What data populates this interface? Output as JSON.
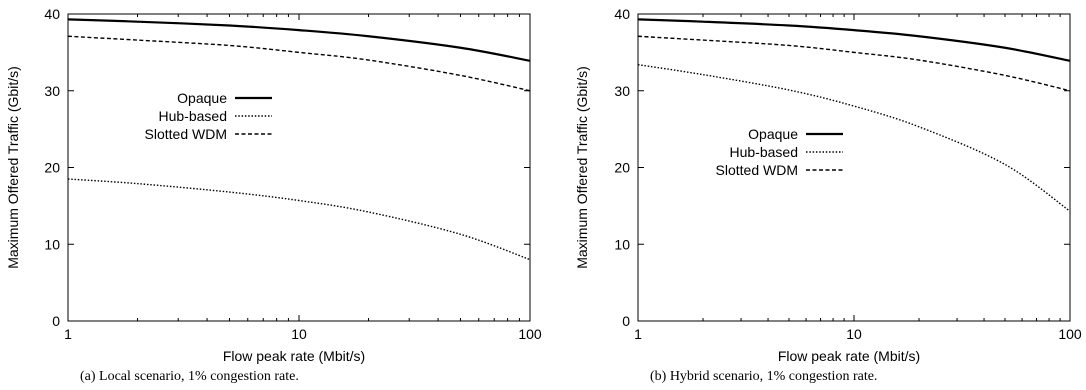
{
  "chart_data": [
    {
      "type": "line",
      "caption": "(a) Local scenario, 1% congestion rate.",
      "xlabel": "Flow peak rate (Mbit/s)",
      "ylabel": "Maximum Offered Traffic (Gbit/s)",
      "xscale": "log",
      "xlim": [
        1,
        100
      ],
      "ylim": [
        0,
        40
      ],
      "xticks": [
        "1",
        "10",
        "100"
      ],
      "yticks": [
        "0",
        "10",
        "20",
        "30",
        "40"
      ],
      "grid": false,
      "legend_position": "upper-left",
      "x": [
        1,
        2,
        5,
        10,
        20,
        50,
        100
      ],
      "series": [
        {
          "name": "Opaque",
          "style": "solid",
          "values": [
            39.3,
            39.0,
            38.5,
            37.9,
            37.1,
            35.6,
            33.9
          ]
        },
        {
          "name": "Hub-based",
          "style": "dotted",
          "values": [
            18.5,
            17.9,
            16.8,
            15.7,
            14.2,
            11.3,
            8.0
          ]
        },
        {
          "name": "Slotted WDM",
          "style": "dashed",
          "values": [
            37.1,
            36.6,
            35.9,
            35.0,
            34.0,
            32.0,
            30.0
          ]
        }
      ]
    },
    {
      "type": "line",
      "caption": "(b) Hybrid scenario, 1% congestion rate.",
      "xlabel": "Flow peak rate (Mbit/s)",
      "ylabel": "Maximum Offered Traffic (Gbit/s)",
      "xscale": "log",
      "xlim": [
        1,
        100
      ],
      "ylim": [
        0,
        40
      ],
      "xticks": [
        "1",
        "10",
        "100"
      ],
      "yticks": [
        "0",
        "10",
        "20",
        "30",
        "40"
      ],
      "grid": false,
      "legend_position": "center-right",
      "x": [
        1,
        2,
        5,
        10,
        20,
        50,
        100
      ],
      "series": [
        {
          "name": "Opaque",
          "style": "solid",
          "values": [
            39.3,
            39.0,
            38.5,
            37.9,
            37.1,
            35.6,
            33.9
          ]
        },
        {
          "name": "Hub-based",
          "style": "dotted",
          "values": [
            33.4,
            32.1,
            30.1,
            28.0,
            25.3,
            20.4,
            14.3
          ]
        },
        {
          "name": "Slotted WDM",
          "style": "dashed",
          "values": [
            37.1,
            36.6,
            35.9,
            35.0,
            34.0,
            32.0,
            30.0
          ]
        }
      ]
    }
  ]
}
